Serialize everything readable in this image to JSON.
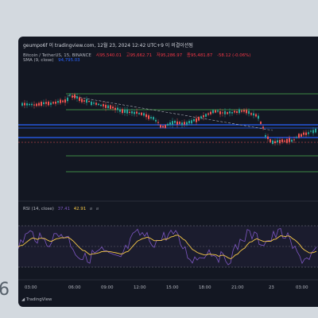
{
  "backdrop": {
    "digit": "6"
  },
  "header": {
    "text": "geumpo6f 이 tradingview.com, 12월 23, 2024 12:42 UTC+9 이 의결이션됨"
  },
  "legend": {
    "symbol": "Bitcoin / TetherUS, 15, BINANCE",
    "values": [
      "시95,540.01",
      "고95,662.71",
      "저95,286.97",
      "종95,481.87",
      "-58.12 (-0.06%)"
    ]
  },
  "sma": {
    "label": "SMA (9, close)",
    "value": "94,795.03"
  },
  "rsi": {
    "label": "RSI (14, close)",
    "rsi_value": "37.41",
    "ma_value": "42.91",
    "extra1": "ø",
    "extra2": "ø"
  },
  "x_ticks": [
    "03:00",
    "06:00",
    "09:00",
    "12:00",
    "15:00",
    "18:00",
    "21:00",
    "23",
    "03:00"
  ],
  "footer": {
    "brand": "TradingView"
  },
  "colors": {
    "bg": "#131722",
    "up": "#26a69a",
    "down": "#ef5350",
    "rsi": "#7e57c2",
    "rsi_ma": "#f7c948",
    "sma": "#2962ff"
  }
}
